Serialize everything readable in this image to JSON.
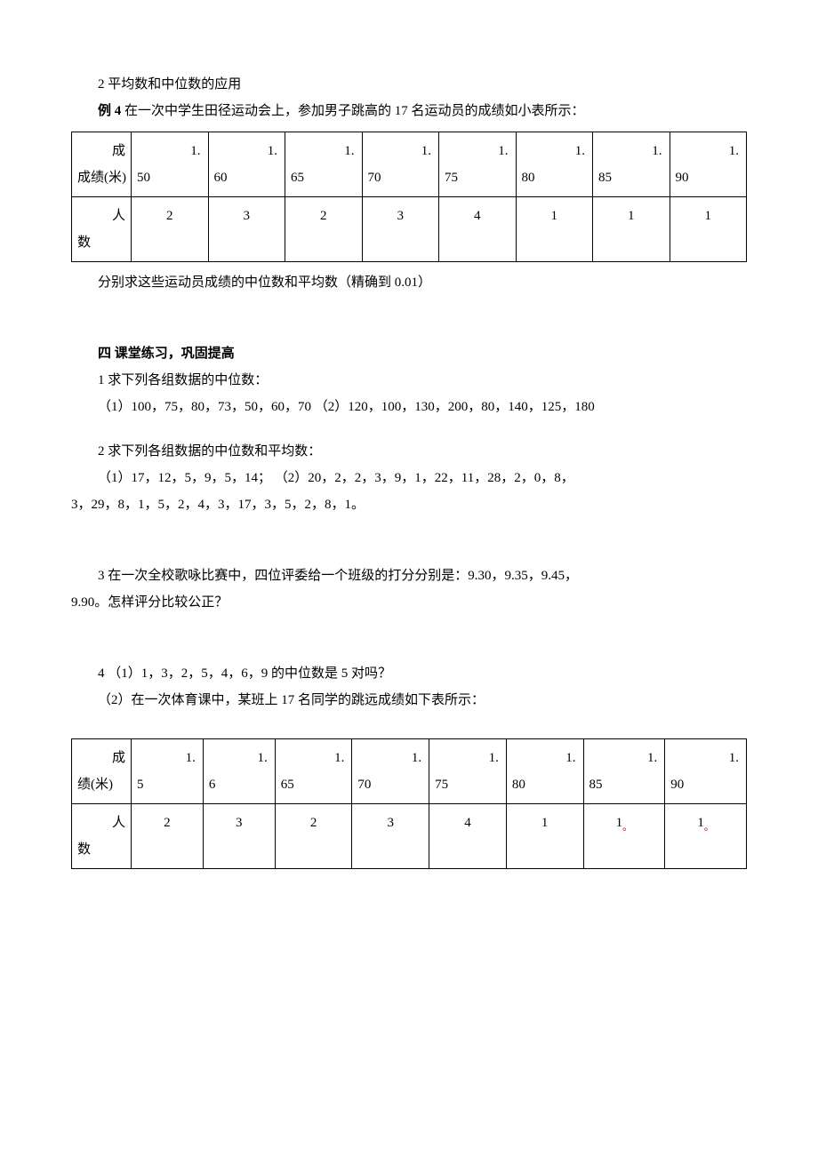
{
  "section_app": {
    "heading": "2 平均数和中位数的应用",
    "example4_label": "例 4",
    "example4_text": "在一次中学生田径运动会上，参加男子跳高的 17 名运动员的成绩如小表所示：",
    "example4_after": "分别求这些运动员成绩的中位数和平均数（精确到 0.01）"
  },
  "table1": {
    "row1_label": "成绩(米)",
    "row2_label": "人数",
    "cols": [
      {
        "v_top": "1.",
        "v_bot": "50",
        "n": "2"
      },
      {
        "v_top": "1.",
        "v_bot": "60",
        "n": "3"
      },
      {
        "v_top": "1.",
        "v_bot": "65",
        "n": "2"
      },
      {
        "v_top": "1.",
        "v_bot": "70",
        "n": "3"
      },
      {
        "v_top": "1.",
        "v_bot": "75",
        "n": "4"
      },
      {
        "v_top": "1.",
        "v_bot": "80",
        "n": "1"
      },
      {
        "v_top": "1.",
        "v_bot": "85",
        "n": "1"
      },
      {
        "v_top": "1.",
        "v_bot": "90",
        "n": "1"
      }
    ]
  },
  "section4": {
    "heading": "四 课堂练习，巩固提高",
    "q1": "1 求下列各组数据的中位数：",
    "q1_data": "（1）100，75，80，73，50，60，70   （2）120，100，130，200，80，140，125，180",
    "q2": "2 求下列各组数据的中位数和平均数：",
    "q2_data1": "（1）17，12，5，9，5，14；      （2）20，2，2，3，9，1，22，11，28，2，0，8，",
    "q2_data2": "3，29，8，1，5，2，4，3，17，3，5，2，8，1。",
    "q3_a": "3 在一次全校歌咏比赛中，四位评委给一个班级的打分分别是：9.30，9.35，9.45，",
    "q3_b": "9.90。怎样评分比较公正？",
    "q4_a": "4 （1）1，3，2，5，4，6，9 的中位数是 5 对吗？",
    "q4_b": "（2）在一次体育课中，某班上 17 名同学的跳远成绩如下表所示："
  },
  "table2": {
    "row1_label": "成绩(米)",
    "row2_label": "人数",
    "cols": [
      {
        "v_top": "1.",
        "v_bot": "5",
        "n": "2",
        "mark": ""
      },
      {
        "v_top": "1.",
        "v_bot": "6",
        "n": "3",
        "mark": ""
      },
      {
        "v_top": "1.",
        "v_bot": "65",
        "n": "2",
        "mark": ""
      },
      {
        "v_top": "1.",
        "v_bot": "70",
        "n": "3",
        "mark": ""
      },
      {
        "v_top": "1.",
        "v_bot": "75",
        "n": "4",
        "mark": ""
      },
      {
        "v_top": "1.",
        "v_bot": "80",
        "n": "1",
        "mark": ""
      },
      {
        "v_top": "1.",
        "v_bot": "85",
        "n": "1",
        "mark": "。"
      },
      {
        "v_top": "1.",
        "v_bot": "90",
        "n": "1",
        "mark": "。"
      }
    ]
  }
}
